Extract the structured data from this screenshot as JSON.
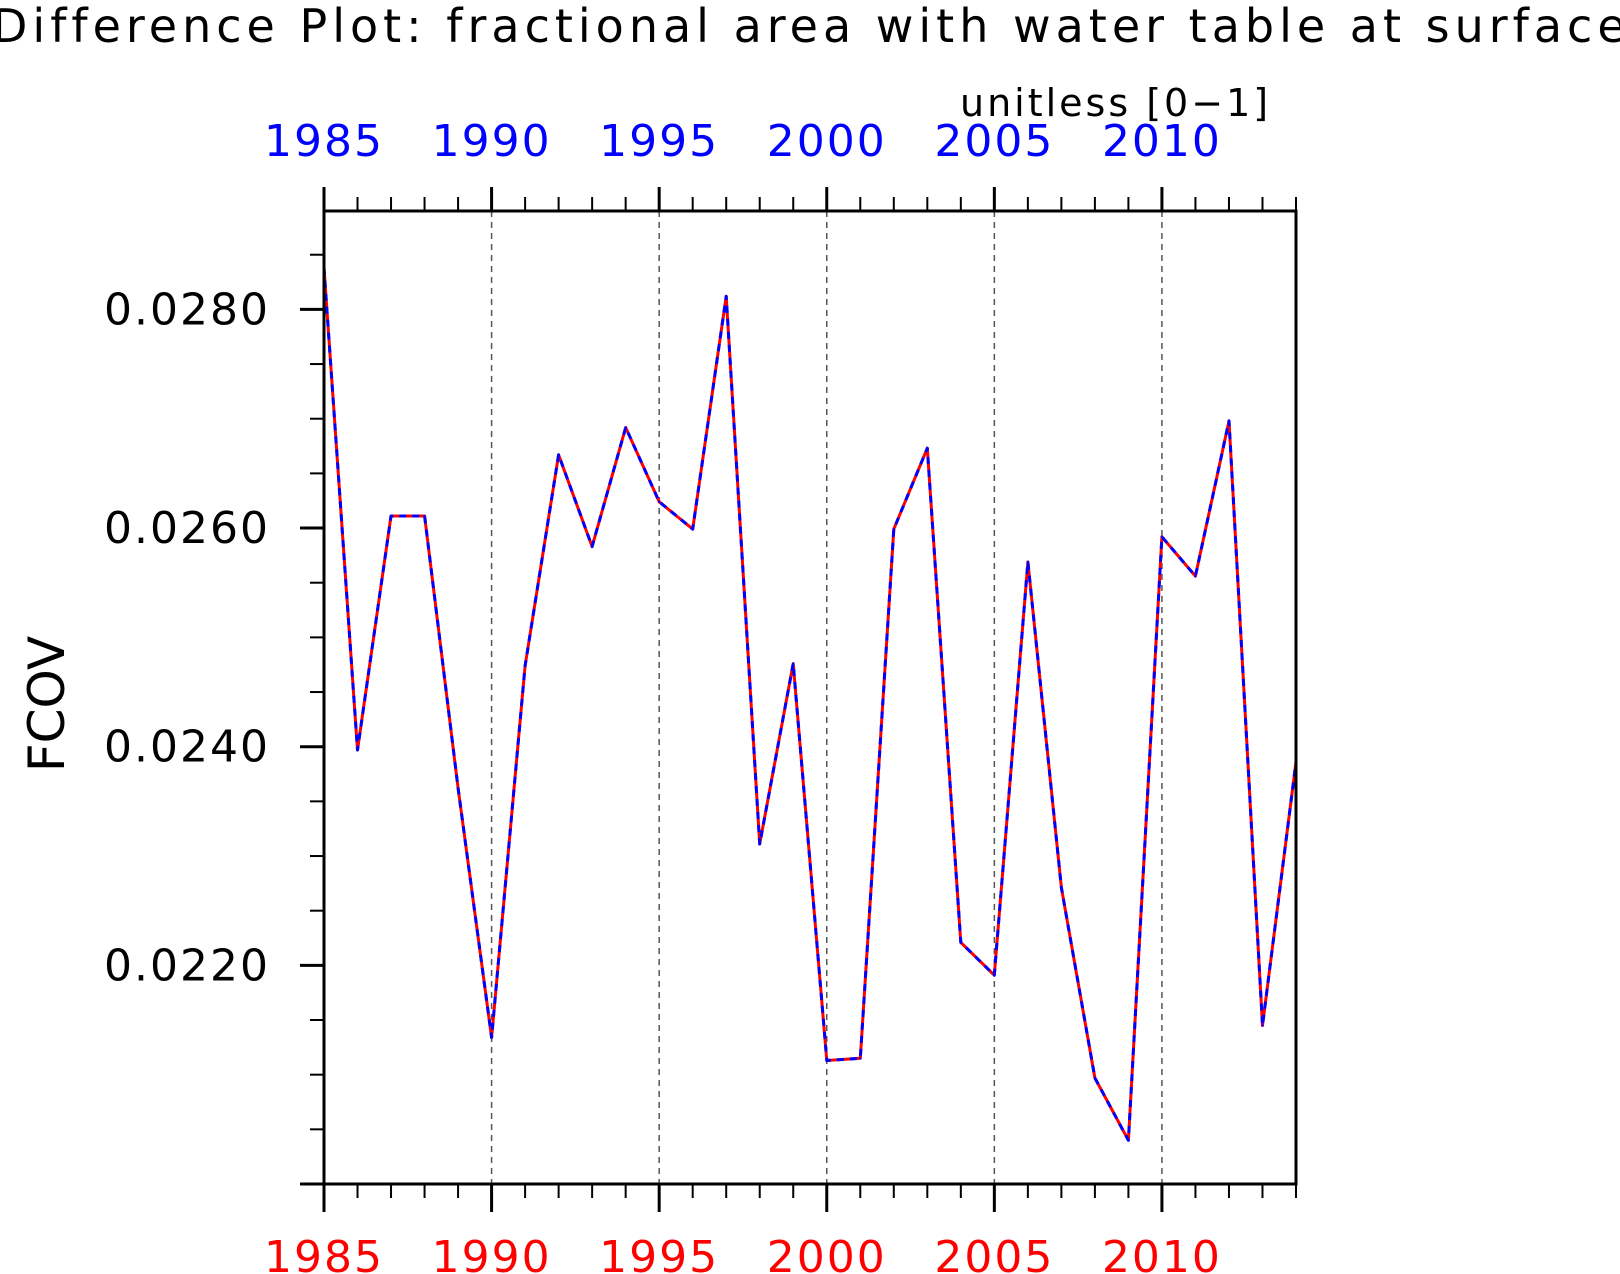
{
  "chart_data": {
    "type": "line",
    "title": "Difference Plot: fractional area with water table at surface",
    "units_label": "unitless [0−1]",
    "ylabel": "FCOV",
    "xlim": [
      1985,
      2014
    ],
    "ylim": [
      0.02,
      0.0289
    ],
    "x_ticks": [
      "1985",
      "1990",
      "1995",
      "2000",
      "2005",
      "2010"
    ],
    "y_ticks": [
      "0.0220",
      "0.0240",
      "0.0260",
      "0.0280"
    ],
    "grid": "vertical dashed lines at 5-year ticks",
    "colors": {
      "top_axis_labels": "#0000ff",
      "bottom_axis_labels": "#ff0000",
      "series_a": "#ff0000",
      "series_b": "#0000ff",
      "text": "#000000"
    },
    "x": [
      1985,
      1986,
      1987,
      1988,
      1989,
      1990,
      1991,
      1992,
      1993,
      1994,
      1995,
      1996,
      1997,
      1998,
      1999,
      2000,
      2001,
      2002,
      2003,
      2004,
      2005,
      2006,
      2007,
      2008,
      2009,
      2010,
      2011,
      2012,
      2013,
      2014
    ],
    "series": [
      {
        "values": [
          0.02838,
          0.02397,
          0.02611,
          0.02611,
          0.02362,
          0.02134,
          0.02474,
          0.02667,
          0.02583,
          0.02692,
          0.02624,
          0.02599,
          0.02812,
          0.02311,
          0.02476,
          0.02113,
          0.02115,
          0.02599,
          0.02673,
          0.02221,
          0.02191,
          0.02569,
          0.02271,
          0.02097,
          0.0204,
          0.02592,
          0.02556,
          0.02698,
          0.02145,
          0.02386
        ]
      },
      {
        "values": [
          0.02838,
          0.02397,
          0.02611,
          0.02611,
          0.02362,
          0.02134,
          0.02474,
          0.02667,
          0.02583,
          0.02692,
          0.02624,
          0.02599,
          0.02812,
          0.02311,
          0.02476,
          0.02113,
          0.02115,
          0.02599,
          0.02673,
          0.02221,
          0.02191,
          0.02569,
          0.02271,
          0.02097,
          0.0204,
          0.02592,
          0.02556,
          0.02698,
          0.02145,
          0.02386
        ]
      }
    ]
  }
}
